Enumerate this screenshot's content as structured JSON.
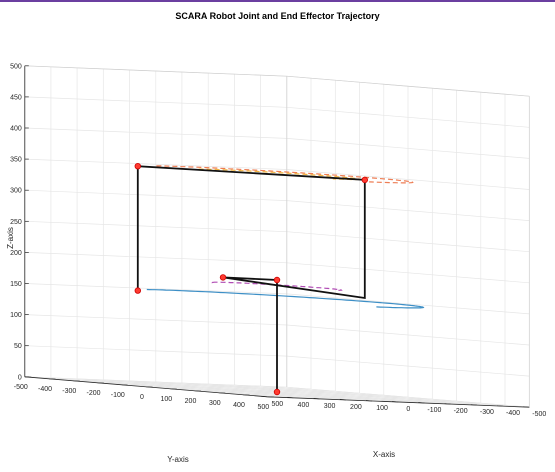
{
  "colors": {
    "topbar": "#6b3fa0",
    "grid": "#e6e6e6",
    "box": "#262626",
    "link": "#111111",
    "joint_edge": "#cc0000",
    "joint_fill": "#ff3b30"
  },
  "chart_data": {
    "type": "line3d",
    "title": "SCARA Robot Joint and End Effector Trajectory",
    "xlabel": "X-axis",
    "ylabel": "Y-axis",
    "zlabel": "Z-axis",
    "xlim": [
      -500,
      500
    ],
    "ylim": [
      -500,
      500
    ],
    "zlim": [
      0,
      500
    ],
    "xticks": [
      -500,
      -400,
      -300,
      -200,
      -100,
      0,
      100,
      200,
      300,
      400,
      500
    ],
    "yticks": [
      -500,
      -400,
      -300,
      -200,
      -100,
      0,
      100,
      200,
      300,
      400,
      500
    ],
    "zticks": [
      0,
      50,
      100,
      150,
      200,
      250,
      300,
      350,
      400,
      450,
      500
    ],
    "grid": true,
    "trajectories": [
      {
        "color": "#ED7D54",
        "style": "dashed",
        "radius": 380,
        "z": 350,
        "theta_start": 160,
        "theta_end": 360
      },
      {
        "color": "#F2B441",
        "style": "dashed",
        "radius": 230,
        "z": 350,
        "theta_start": 150,
        "theta_end": 360
      },
      {
        "color": "#3D8FC6",
        "style": "solid",
        "radius": 410,
        "z": 150,
        "theta_start": 160,
        "theta_end": 360
      },
      {
        "color": "#B04BB4",
        "style": "dashed",
        "radius": 180,
        "z": 170,
        "theta_start": 130,
        "theta_end": 330
      }
    ],
    "arm_links": [
      {
        "x": 0,
        "y": 0,
        "z": 0
      },
      {
        "x": 0,
        "y": 0,
        "z": 180
      },
      {
        "x": -50,
        "y": 160,
        "z": 180
      },
      {
        "x": 200,
        "y": -150,
        "z": 160
      },
      {
        "x": 200,
        "y": -150,
        "z": 350
      },
      {
        "x": -250,
        "y": 300,
        "z": 350
      },
      {
        "x": -250,
        "y": 300,
        "z": 150
      }
    ],
    "joints": [
      {
        "x": 0,
        "y": 0,
        "z": 0
      },
      {
        "x": 0,
        "y": 0,
        "z": 180
      },
      {
        "x": -50,
        "y": 160,
        "z": 180
      },
      {
        "x": 200,
        "y": -150,
        "z": 350
      },
      {
        "x": -250,
        "y": 300,
        "z": 350
      },
      {
        "x": -250,
        "y": 300,
        "z": 150
      }
    ]
  }
}
